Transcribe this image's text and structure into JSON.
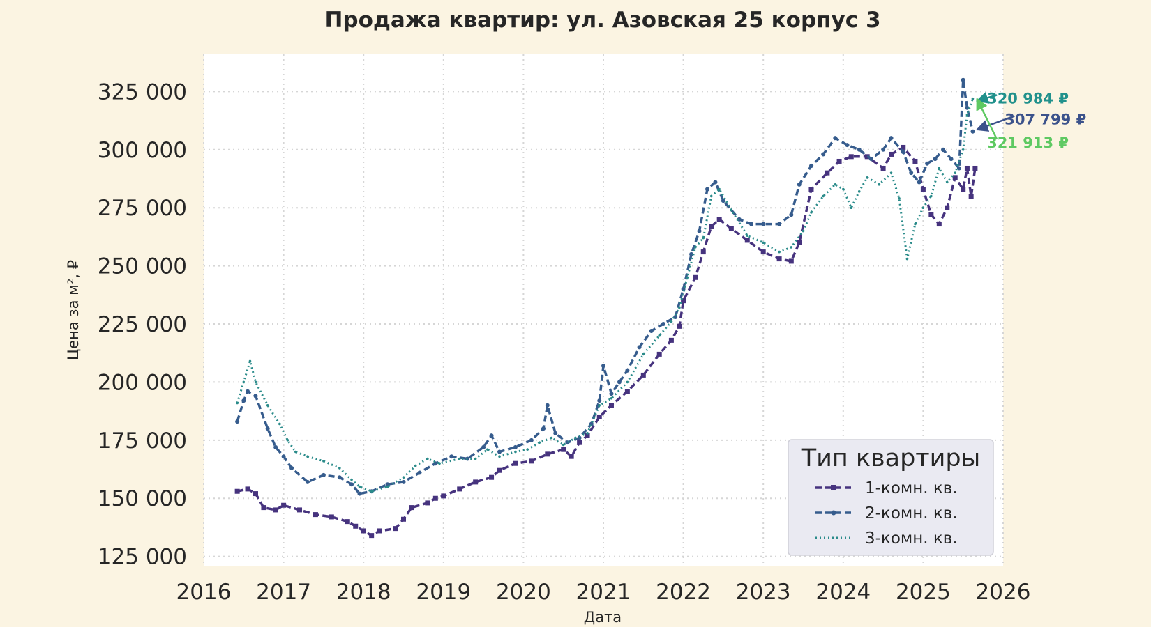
{
  "chart_data": {
    "type": "line",
    "title": "Продажа квартир: ул. Азовская 25 корпус 3",
    "xlabel": "Дата",
    "ylabel": "Цена за м², ₽",
    "xlim": [
      2016,
      2026
    ],
    "ylim": [
      121000,
      341000
    ],
    "x_ticks": [
      "2016",
      "2017",
      "2018",
      "2019",
      "2020",
      "2021",
      "2022",
      "2023",
      "2024",
      "2025",
      "2026"
    ],
    "y_ticks": [
      {
        "value": 125000,
        "label": "125 000"
      },
      {
        "value": 150000,
        "label": "150 000"
      },
      {
        "value": 175000,
        "label": "175 000"
      },
      {
        "value": 200000,
        "label": "200 000"
      },
      {
        "value": 225000,
        "label": "225 000"
      },
      {
        "value": 250000,
        "label": "250 000"
      },
      {
        "value": 275000,
        "label": "275 000"
      },
      {
        "value": 300000,
        "label": "300 000"
      },
      {
        "value": 325000,
        "label": "325 000"
      }
    ],
    "grid": true,
    "legend": {
      "title": "Тип квартиры",
      "placement": "bottom-right"
    },
    "series": [
      {
        "name": "1-комн. кв.",
        "color": "#46337e",
        "style": "dashed-square",
        "points": [
          [
            2016.42,
            153000
          ],
          [
            2016.55,
            154000
          ],
          [
            2016.65,
            152000
          ],
          [
            2016.75,
            146000
          ],
          [
            2016.9,
            145000
          ],
          [
            2017.0,
            147000
          ],
          [
            2017.2,
            145000
          ],
          [
            2017.4,
            143000
          ],
          [
            2017.6,
            142000
          ],
          [
            2017.8,
            140000
          ],
          [
            2017.9,
            138000
          ],
          [
            2018.0,
            136000
          ],
          [
            2018.1,
            134000
          ],
          [
            2018.2,
            136000
          ],
          [
            2018.4,
            137000
          ],
          [
            2018.5,
            141000
          ],
          [
            2018.6,
            146000
          ],
          [
            2018.8,
            148000
          ],
          [
            2018.9,
            150000
          ],
          [
            2019.0,
            151000
          ],
          [
            2019.2,
            154000
          ],
          [
            2019.4,
            157000
          ],
          [
            2019.6,
            159000
          ],
          [
            2019.7,
            162000
          ],
          [
            2019.9,
            165000
          ],
          [
            2020.1,
            166000
          ],
          [
            2020.3,
            169000
          ],
          [
            2020.5,
            171000
          ],
          [
            2020.6,
            168000
          ],
          [
            2020.7,
            174000
          ],
          [
            2020.8,
            177000
          ],
          [
            2020.95,
            185000
          ],
          [
            2021.1,
            190000
          ],
          [
            2021.3,
            196000
          ],
          [
            2021.5,
            203000
          ],
          [
            2021.7,
            212000
          ],
          [
            2021.85,
            218000
          ],
          [
            2021.95,
            224000
          ],
          [
            2022.0,
            235000
          ],
          [
            2022.15,
            245000
          ],
          [
            2022.25,
            256000
          ],
          [
            2022.35,
            267000
          ],
          [
            2022.45,
            270000
          ],
          [
            2022.6,
            266000
          ],
          [
            2022.8,
            261000
          ],
          [
            2023.0,
            256000
          ],
          [
            2023.2,
            253000
          ],
          [
            2023.35,
            252000
          ],
          [
            2023.45,
            260000
          ],
          [
            2023.6,
            283000
          ],
          [
            2023.8,
            290000
          ],
          [
            2023.95,
            295000
          ],
          [
            2024.1,
            297000
          ],
          [
            2024.3,
            297000
          ],
          [
            2024.5,
            292000
          ],
          [
            2024.6,
            298000
          ],
          [
            2024.75,
            301000
          ],
          [
            2024.9,
            295000
          ],
          [
            2025.0,
            283000
          ],
          [
            2025.1,
            272000
          ],
          [
            2025.2,
            268000
          ],
          [
            2025.3,
            275000
          ],
          [
            2025.4,
            288000
          ],
          [
            2025.5,
            283000
          ],
          [
            2025.55,
            292000
          ],
          [
            2025.6,
            280000
          ],
          [
            2025.65,
            292000
          ]
        ]
      },
      {
        "name": "2-комн. кв.",
        "color": "#365c8d",
        "style": "dashed-dot",
        "points": [
          [
            2016.42,
            183000
          ],
          [
            2016.5,
            192000
          ],
          [
            2016.55,
            196000
          ],
          [
            2016.65,
            194000
          ],
          [
            2016.8,
            180000
          ],
          [
            2016.9,
            172000
          ],
          [
            2017.0,
            168000
          ],
          [
            2017.1,
            163000
          ],
          [
            2017.3,
            157000
          ],
          [
            2017.5,
            160000
          ],
          [
            2017.7,
            159000
          ],
          [
            2017.85,
            156000
          ],
          [
            2017.95,
            152000
          ],
          [
            2018.1,
            153000
          ],
          [
            2018.3,
            156000
          ],
          [
            2018.5,
            157000
          ],
          [
            2018.7,
            161000
          ],
          [
            2018.9,
            165000
          ],
          [
            2019.1,
            168000
          ],
          [
            2019.3,
            167000
          ],
          [
            2019.5,
            172000
          ],
          [
            2019.6,
            177000
          ],
          [
            2019.7,
            170000
          ],
          [
            2019.9,
            172000
          ],
          [
            2020.1,
            175000
          ],
          [
            2020.25,
            180000
          ],
          [
            2020.3,
            190000
          ],
          [
            2020.4,
            178000
          ],
          [
            2020.55,
            174000
          ],
          [
            2020.7,
            176000
          ],
          [
            2020.85,
            182000
          ],
          [
            2020.95,
            192000
          ],
          [
            2021.0,
            207000
          ],
          [
            2021.1,
            195000
          ],
          [
            2021.2,
            200000
          ],
          [
            2021.3,
            205000
          ],
          [
            2021.45,
            215000
          ],
          [
            2021.6,
            222000
          ],
          [
            2021.75,
            225000
          ],
          [
            2021.9,
            228000
          ],
          [
            2022.0,
            240000
          ],
          [
            2022.1,
            255000
          ],
          [
            2022.2,
            265000
          ],
          [
            2022.3,
            283000
          ],
          [
            2022.4,
            286000
          ],
          [
            2022.5,
            278000
          ],
          [
            2022.7,
            270000
          ],
          [
            2022.85,
            268000
          ],
          [
            2023.0,
            268000
          ],
          [
            2023.2,
            268000
          ],
          [
            2023.35,
            272000
          ],
          [
            2023.45,
            285000
          ],
          [
            2023.6,
            293000
          ],
          [
            2023.75,
            298000
          ],
          [
            2023.9,
            305000
          ],
          [
            2024.05,
            302000
          ],
          [
            2024.2,
            300000
          ],
          [
            2024.35,
            296000
          ],
          [
            2024.5,
            300000
          ],
          [
            2024.6,
            305000
          ],
          [
            2024.75,
            299000
          ],
          [
            2024.85,
            290000
          ],
          [
            2024.95,
            286000
          ],
          [
            2025.05,
            294000
          ],
          [
            2025.15,
            296000
          ],
          [
            2025.25,
            300000
          ],
          [
            2025.35,
            296000
          ],
          [
            2025.45,
            292000
          ],
          [
            2025.5,
            330000
          ],
          [
            2025.55,
            318000
          ],
          [
            2025.62,
            307799
          ]
        ]
      },
      {
        "name": "3-комн. кв.",
        "color": "#2a8b8a",
        "style": "dotted",
        "points": [
          [
            2016.42,
            191000
          ],
          [
            2016.5,
            200000
          ],
          [
            2016.58,
            209000
          ],
          [
            2016.65,
            200000
          ],
          [
            2016.8,
            190000
          ],
          [
            2016.95,
            182000
          ],
          [
            2017.05,
            175000
          ],
          [
            2017.15,
            170000
          ],
          [
            2017.3,
            168000
          ],
          [
            2017.5,
            166000
          ],
          [
            2017.7,
            163000
          ],
          [
            2017.85,
            158000
          ],
          [
            2017.95,
            155000
          ],
          [
            2018.1,
            153000
          ],
          [
            2018.3,
            155000
          ],
          [
            2018.5,
            159000
          ],
          [
            2018.65,
            164000
          ],
          [
            2018.8,
            167000
          ],
          [
            2018.95,
            165000
          ],
          [
            2019.2,
            167000
          ],
          [
            2019.4,
            167000
          ],
          [
            2019.55,
            171000
          ],
          [
            2019.7,
            168000
          ],
          [
            2019.9,
            170000
          ],
          [
            2020.05,
            171000
          ],
          [
            2020.2,
            174000
          ],
          [
            2020.35,
            176000
          ],
          [
            2020.5,
            173000
          ],
          [
            2020.65,
            176000
          ],
          [
            2020.8,
            178000
          ],
          [
            2020.95,
            190000
          ],
          [
            2021.1,
            193000
          ],
          [
            2021.3,
            200000
          ],
          [
            2021.5,
            212000
          ],
          [
            2021.7,
            220000
          ],
          [
            2021.85,
            226000
          ],
          [
            2021.95,
            232000
          ],
          [
            2022.05,
            245000
          ],
          [
            2022.15,
            258000
          ],
          [
            2022.25,
            262000
          ],
          [
            2022.35,
            280000
          ],
          [
            2022.45,
            283000
          ],
          [
            2022.6,
            274000
          ],
          [
            2022.8,
            263000
          ],
          [
            2023.0,
            260000
          ],
          [
            2023.2,
            256000
          ],
          [
            2023.35,
            258000
          ],
          [
            2023.5,
            265000
          ],
          [
            2023.6,
            273000
          ],
          [
            2023.75,
            280000
          ],
          [
            2023.9,
            285000
          ],
          [
            2024.0,
            283000
          ],
          [
            2024.1,
            275000
          ],
          [
            2024.2,
            282000
          ],
          [
            2024.3,
            288000
          ],
          [
            2024.45,
            285000
          ],
          [
            2024.6,
            290000
          ],
          [
            2024.7,
            279000
          ],
          [
            2024.8,
            253000
          ],
          [
            2024.9,
            268000
          ],
          [
            2025.0,
            275000
          ],
          [
            2025.1,
            280000
          ],
          [
            2025.2,
            292000
          ],
          [
            2025.3,
            286000
          ],
          [
            2025.4,
            290000
          ],
          [
            2025.5,
            300000
          ],
          [
            2025.55,
            315000
          ],
          [
            2025.62,
            321913
          ]
        ]
      }
    ],
    "annotations": [
      {
        "label": "320 984 ₽",
        "color": "#21918c",
        "x": 2025.62,
        "y": 321000,
        "text_x": 2025.8,
        "text_y": 322000
      },
      {
        "label": "307 799 ₽",
        "color": "#3b528b",
        "x": 2025.62,
        "y": 308600,
        "text_x": 2026.02,
        "text_y": 313000
      },
      {
        "label": "321 913 ₽",
        "color": "#5ec962",
        "x": 2025.62,
        "y": 321913,
        "text_x": 2025.8,
        "text_y": 303000
      }
    ]
  }
}
